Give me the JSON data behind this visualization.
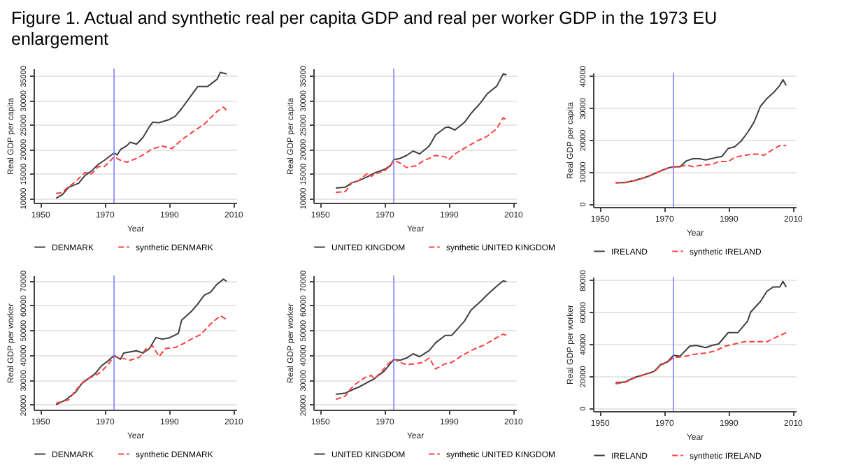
{
  "chart_data": [
    {
      "type": "line",
      "title": "Figure 1. Actual and synthetic real per capita GDP and real per worker GDP in the 1973 EU enlargement",
      "xlabel": "Year",
      "ylabel": "Real GDP per capita",
      "xlim": [
        1948,
        2011
      ],
      "xticks": [
        1950,
        1970,
        1990,
        2010
      ],
      "ylim": [
        9000,
        36500
      ],
      "yticks": [
        10000,
        15000,
        20000,
        25000,
        30000,
        35000
      ],
      "grid": "y",
      "legend": "bottom",
      "ref_lines": [
        {
          "axis": "x",
          "value": 1973,
          "color": "#8080ff"
        }
      ],
      "series": [
        {
          "name": "DENMARK",
          "color": "#404040",
          "line_style": "solid",
          "x": [
            1955,
            1957,
            1959,
            1962,
            1964,
            1966,
            1968,
            1970,
            1973,
            1974,
            1975,
            1977,
            1978,
            1980,
            1982,
            1984,
            1985,
            1987,
            1990,
            1992,
            1994,
            1997,
            1999,
            2002,
            2005,
            2006,
            2008
          ],
          "values": [
            9900,
            10700,
            12200,
            13000,
            14600,
            15500,
            16800,
            17700,
            19200,
            18800,
            19900,
            20700,
            21400,
            21000,
            22400,
            24600,
            25500,
            25400,
            26000,
            26700,
            28300,
            31000,
            32800,
            32800,
            34300,
            35700,
            35400
          ]
        },
        {
          "name": "synthetic DENMARK",
          "color": "#ff4040",
          "line_style": "dashed",
          "x": [
            1955,
            1957,
            1958,
            1961,
            1964,
            1966,
            1968,
            1970,
            1972,
            1973,
            1975,
            1977,
            1980,
            1982,
            1985,
            1988,
            1991,
            1994,
            1997,
            2001,
            2005,
            2007,
            2008
          ],
          "values": [
            10900,
            11100,
            11800,
            13300,
            15200,
            14900,
            16400,
            16400,
            17700,
            18400,
            17700,
            17300,
            18100,
            18800,
            20100,
            20600,
            20100,
            21900,
            23300,
            25100,
            27700,
            28600,
            27900
          ]
        }
      ]
    },
    {
      "type": "line",
      "xlabel": "Year",
      "ylabel": "Real GDP per capita",
      "xlim": [
        1948,
        2011
      ],
      "xticks": [
        1950,
        1970,
        1990,
        2010
      ],
      "ylim": [
        9000,
        36500
      ],
      "yticks": [
        10000,
        15000,
        20000,
        25000,
        30000,
        35000
      ],
      "grid": "y",
      "legend": "bottom",
      "ref_lines": [
        {
          "axis": "x",
          "value": 1973,
          "color": "#8080ff"
        }
      ],
      "series": [
        {
          "name": "UNITED KINGDOM",
          "color": "#404040",
          "line_style": "solid",
          "x": [
            1955,
            1958,
            1960,
            1962,
            1965,
            1967,
            1970,
            1972,
            1973,
            1975,
            1977,
            1979,
            1981,
            1984,
            1986,
            1989,
            1990,
            1992,
            1995,
            1997,
            2000,
            2002,
            2005,
            2007,
            2008
          ],
          "values": [
            12000,
            12200,
            13100,
            13500,
            14400,
            15100,
            15800,
            16600,
            17800,
            18100,
            18700,
            19600,
            19000,
            20600,
            22900,
            24400,
            24500,
            23900,
            25500,
            27300,
            29500,
            31300,
            32900,
            35400,
            35200
          ]
        },
        {
          "name": "synthetic UNITED KINGDOM",
          "color": "#ff4040",
          "line_style": "dashed",
          "x": [
            1955,
            1958,
            1960,
            1962,
            1965,
            1966,
            1968,
            1970,
            1972,
            1973,
            1975,
            1977,
            1980,
            1982,
            1986,
            1989,
            1990,
            1992,
            1995,
            1999,
            2002,
            2005,
            2007,
            2008
          ],
          "values": [
            11100,
            11300,
            13100,
            13500,
            15100,
            14400,
            15100,
            15500,
            16600,
            17700,
            17100,
            16200,
            16600,
            17500,
            18700,
            18400,
            17800,
            19000,
            20200,
            21700,
            22600,
            24200,
            26400,
            26000
          ]
        }
      ]
    },
    {
      "type": "line",
      "xlabel": "Year",
      "ylabel": "Real GDP per capita",
      "xlim": [
        1948,
        2011
      ],
      "xticks": [
        1950,
        1970,
        1990,
        2010
      ],
      "ylim": [
        -1000,
        41000
      ],
      "yticks": [
        0,
        10000,
        20000,
        30000,
        40000
      ],
      "grid": "y",
      "legend": "bottom",
      "ref_lines": [
        {
          "axis": "x",
          "value": 1973,
          "color": "#8080ff"
        }
      ],
      "series": [
        {
          "name": "IRELAND",
          "color": "#404040",
          "line_style": "solid",
          "x": [
            1955,
            1958,
            1961,
            1964,
            1966,
            1969,
            1971,
            1973,
            1975,
            1977,
            1979,
            1981,
            1983,
            1986,
            1988,
            1990,
            1992,
            1994,
            1996,
            1998,
            2000,
            2002,
            2004,
            2006,
            2007,
            2008
          ],
          "values": [
            6600,
            6600,
            7300,
            8200,
            8900,
            10300,
            11100,
            11600,
            11600,
            13400,
            14100,
            14100,
            13700,
            14400,
            14800,
            17300,
            17800,
            19600,
            22300,
            25500,
            30500,
            32900,
            34700,
            37000,
            38800,
            37000
          ]
        },
        {
          "name": "synthetic IRELAND",
          "color": "#ff4040",
          "line_style": "dashed",
          "x": [
            1955,
            1958,
            1961,
            1964,
            1966,
            1969,
            1971,
            1973,
            1975,
            1977,
            1979,
            1982,
            1985,
            1987,
            1990,
            1992,
            1995,
            1997,
            2000,
            2001,
            2003,
            2006,
            2008
          ],
          "values": [
            6500,
            6700,
            7200,
            8100,
            9000,
            10200,
            11000,
            11400,
            11600,
            12100,
            11600,
            12100,
            12300,
            13200,
            13200,
            14500,
            15100,
            15500,
            15500,
            15100,
            16400,
            18200,
            18200
          ]
        }
      ]
    },
    {
      "type": "line",
      "xlabel": "Year",
      "ylabel": "Real GDP per worker",
      "xlim": [
        1948,
        2011
      ],
      "xticks": [
        1950,
        1970,
        1990,
        2010
      ],
      "ylim": [
        18000,
        72000
      ],
      "yticks": [
        20000,
        30000,
        40000,
        50000,
        60000,
        70000
      ],
      "grid": "y",
      "legend": "bottom",
      "ref_lines": [
        {
          "axis": "x",
          "value": 1973,
          "color": "#8080ff"
        }
      ],
      "series": [
        {
          "name": "DENMARK",
          "color": "#404040",
          "line_style": "solid",
          "x": [
            1955,
            1958,
            1961,
            1963,
            1965,
            1967,
            1969,
            1971,
            1973,
            1975,
            1976,
            1979,
            1980,
            1982,
            1984,
            1986,
            1988,
            1990,
            1993,
            1994,
            1997,
            1999,
            2001,
            2003,
            2005,
            2007,
            2008
          ],
          "values": [
            20000,
            22000,
            25000,
            28500,
            30500,
            32300,
            35500,
            37500,
            39800,
            38300,
            40800,
            41500,
            41700,
            40800,
            42600,
            47000,
            46400,
            46800,
            48700,
            54000,
            57500,
            60500,
            64000,
            65300,
            68500,
            70500,
            69600
          ]
        },
        {
          "name": "synthetic DENMARK",
          "color": "#ff4040",
          "line_style": "dashed",
          "x": [
            1955,
            1959,
            1961,
            1964,
            1967,
            1969,
            1971,
            1973,
            1975,
            1978,
            1981,
            1983,
            1985,
            1987,
            1989,
            1992,
            1995,
            1997,
            2000,
            2003,
            2006,
            2008
          ],
          "values": [
            20600,
            22000,
            25700,
            29800,
            31700,
            33200,
            36000,
            39400,
            38900,
            37900,
            39200,
            42600,
            43600,
            39400,
            42600,
            43000,
            44900,
            46400,
            48300,
            52500,
            55800,
            54300
          ]
        }
      ]
    },
    {
      "type": "line",
      "xlabel": "Year",
      "ylabel": "Real GDP per worker",
      "xlim": [
        1948,
        2011
      ],
      "xticks": [
        1950,
        1970,
        1990,
        2010
      ],
      "ylim": [
        18000,
        72000
      ],
      "yticks": [
        20000,
        30000,
        40000,
        50000,
        60000,
        70000
      ],
      "grid": "y",
      "legend": "bottom",
      "ref_lines": [
        {
          "axis": "x",
          "value": 1973,
          "color": "#8080ff"
        }
      ],
      "series": [
        {
          "name": "UNITED KINGDOM",
          "color": "#404040",
          "line_style": "solid",
          "x": [
            1955,
            1958,
            1961,
            1962,
            1965,
            1967,
            1970,
            1973,
            1975,
            1977,
            1979,
            1981,
            1984,
            1986,
            1989,
            1991,
            1992,
            1995,
            1997,
            2000,
            2002,
            2005,
            2007,
            2008
          ],
          "values": [
            24200,
            24700,
            26500,
            27000,
            29100,
            30500,
            33500,
            38200,
            37900,
            38800,
            40500,
            39300,
            41800,
            44900,
            47900,
            47900,
            49300,
            53700,
            58100,
            61600,
            64200,
            67700,
            69800,
            69500
          ]
        },
        {
          "name": "synthetic UNITED KINGDOM",
          "color": "#ff4040",
          "line_style": "dashed",
          "x": [
            1955,
            1958,
            1959,
            1961,
            1964,
            1966,
            1967,
            1969,
            1971,
            1973,
            1975,
            1977,
            1980,
            1982,
            1984,
            1986,
            1989,
            1991,
            1994,
            1997,
            2001,
            2005,
            2007,
            2008
          ],
          "values": [
            22100,
            23500,
            25600,
            28200,
            30900,
            31800,
            30500,
            33000,
            36100,
            38400,
            37000,
            36100,
            36500,
            37000,
            38800,
            34400,
            36500,
            37000,
            39600,
            41800,
            44000,
            47000,
            48400,
            47900
          ]
        }
      ]
    },
    {
      "type": "line",
      "xlabel": "Year",
      "ylabel": "Real GDP per worker",
      "xlim": [
        1948,
        2011
      ],
      "xticks": [
        1950,
        1970,
        1990,
        2010
      ],
      "ylim": [
        -2000,
        82000
      ],
      "yticks": [
        0,
        20000,
        40000,
        60000,
        80000
      ],
      "grid": "y",
      "legend": "bottom",
      "ref_lines": [
        {
          "axis": "x",
          "value": 1973,
          "color": "#8080ff"
        }
      ],
      "series": [
        {
          "name": "IRELAND",
          "color": "#404040",
          "line_style": "solid",
          "x": [
            1955,
            1958,
            1961,
            1964,
            1967,
            1969,
            1971,
            1973,
            1975,
            1978,
            1980,
            1983,
            1985,
            1987,
            1990,
            1993,
            1996,
            1997,
            2000,
            2002,
            2004,
            2006,
            2007,
            2008
          ],
          "values": [
            15700,
            16300,
            19100,
            20900,
            22900,
            27100,
            28600,
            32900,
            32300,
            38600,
            39100,
            37700,
            39100,
            40000,
            47100,
            47100,
            54300,
            60000,
            66600,
            72900,
            75700,
            75700,
            79100,
            75700
          ]
        },
        {
          "name": "synthetic IRELAND",
          "color": "#ff4040",
          "line_style": "dashed",
          "x": [
            1955,
            1958,
            1961,
            1964,
            1967,
            1969,
            1971,
            1973,
            1976,
            1979,
            1983,
            1986,
            1989,
            1992,
            1995,
            1999,
            2002,
            2005,
            2008
          ],
          "values": [
            15100,
            16000,
            18800,
            20700,
            22500,
            26600,
            28600,
            31400,
            32000,
            33400,
            34300,
            35700,
            38600,
            40000,
            41400,
            41400,
            41400,
            44300,
            47100
          ]
        }
      ]
    }
  ]
}
